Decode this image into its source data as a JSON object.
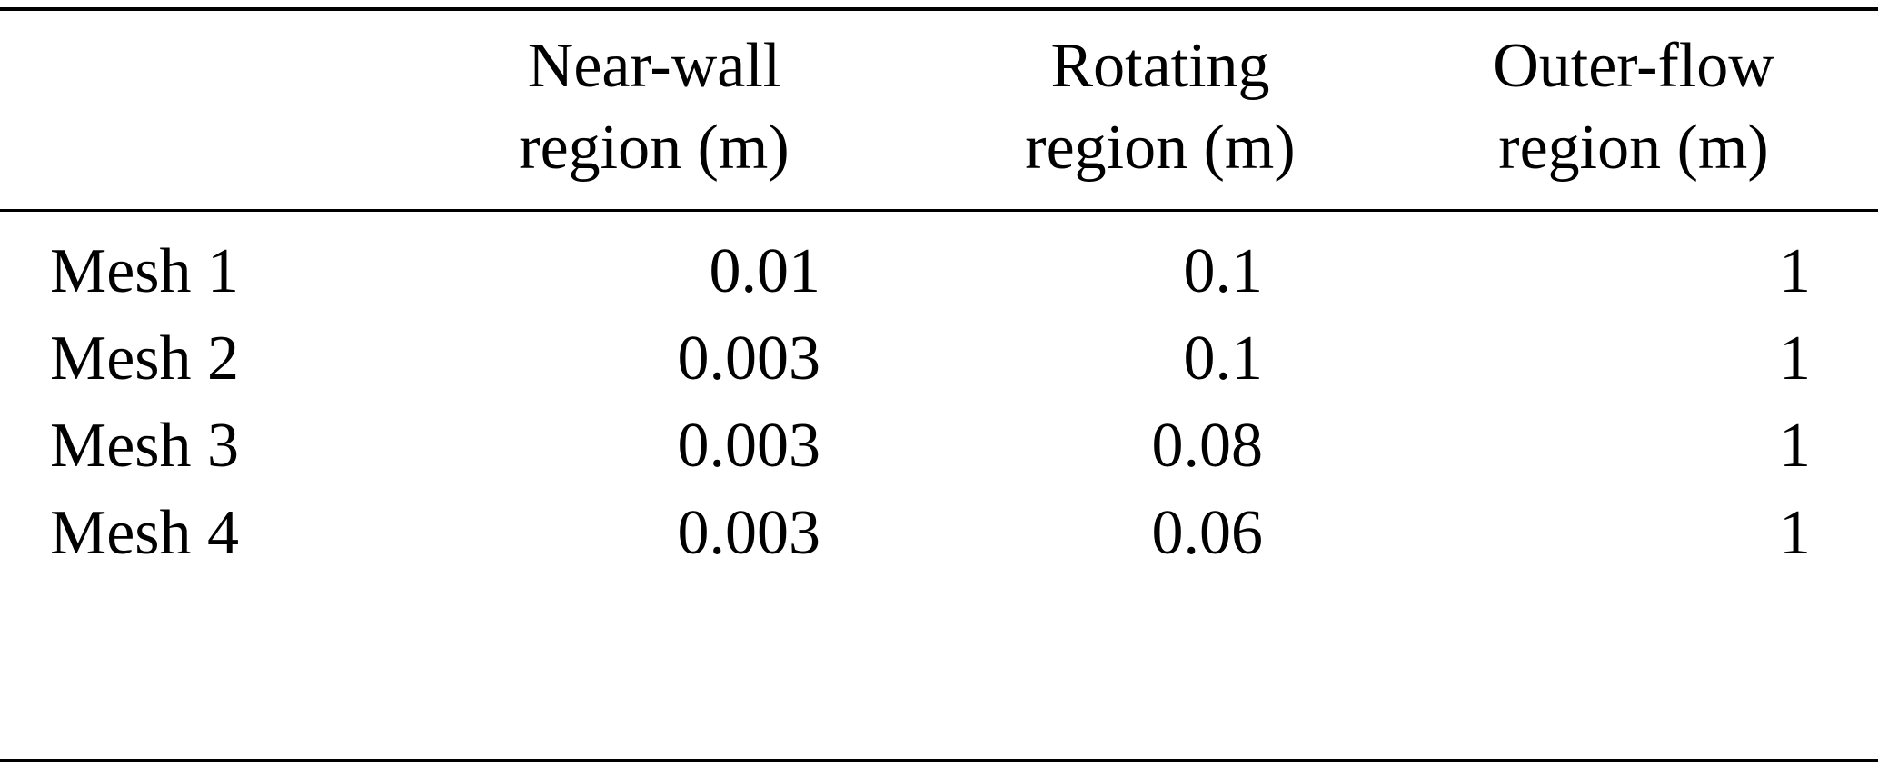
{
  "chart_data": {
    "type": "table",
    "columns": [
      {
        "line1": "",
        "line2": ""
      },
      {
        "line1": "Near-wall",
        "line2": "region (m)"
      },
      {
        "line1": "Rotating",
        "line2": "region (m)"
      },
      {
        "line1": "Outer-flow",
        "line2": "region (m)"
      }
    ],
    "rows": [
      {
        "label": "Mesh 1",
        "values": [
          "0.01",
          "0.1",
          "1"
        ]
      },
      {
        "label": "Mesh 2",
        "values": [
          "0.003",
          "0.1",
          "1"
        ]
      },
      {
        "label": "Mesh 3",
        "values": [
          "0.003",
          "0.08",
          "1"
        ]
      },
      {
        "label": "Mesh 4",
        "values": [
          "0.003",
          "0.06",
          "1"
        ]
      }
    ]
  }
}
